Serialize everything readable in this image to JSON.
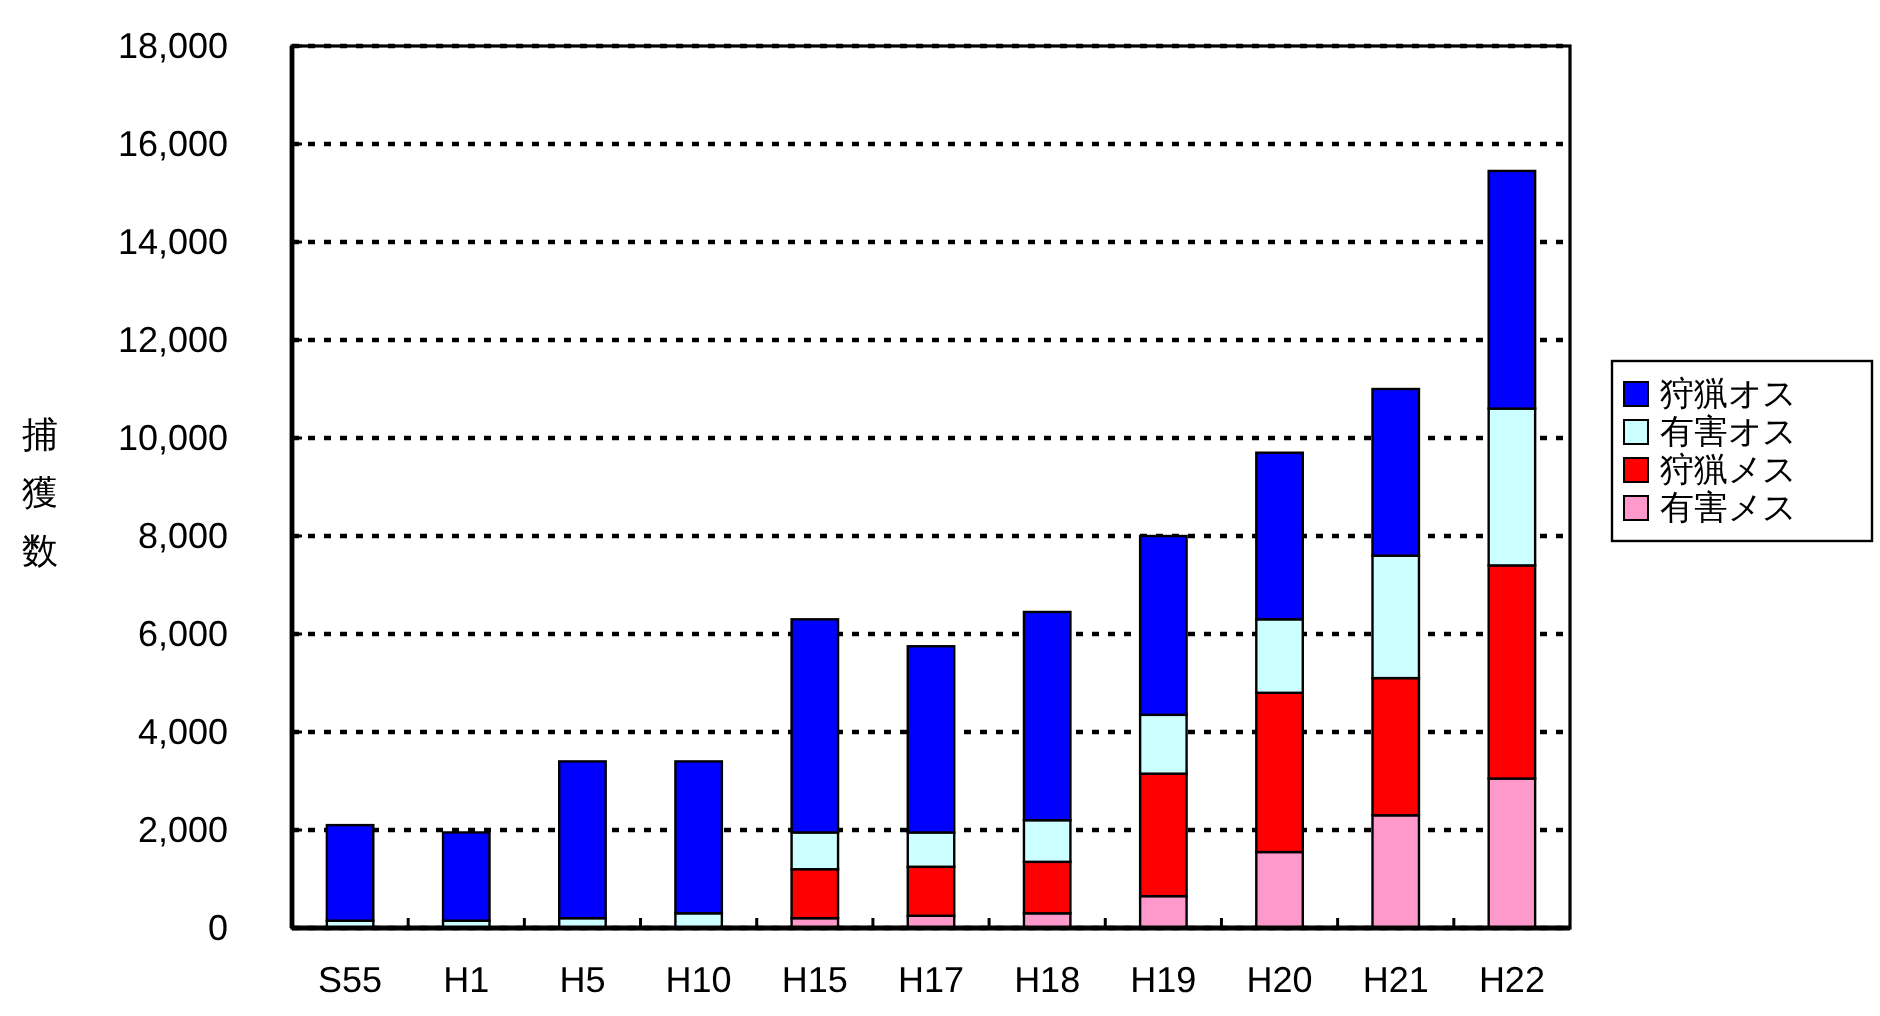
{
  "chart_data": {
    "type": "bar",
    "stacked": true,
    "ylabel": "捕獲数",
    "categories": [
      "S55",
      "H1",
      "H5",
      "H10",
      "H15",
      "H17",
      "H18",
      "H19",
      "H20",
      "H21",
      "H22"
    ],
    "series": [
      {
        "name": "有害メス",
        "color": "#ff99cc",
        "values": [
          null,
          null,
          null,
          null,
          200,
          250,
          300,
          650,
          1550,
          2300,
          3050
        ]
      },
      {
        "name": "狩猟メス",
        "color": "#ff0000",
        "values": [
          null,
          null,
          null,
          null,
          1000,
          1000,
          1050,
          2500,
          3250,
          2800,
          4350
        ]
      },
      {
        "name": "有害オス",
        "color": "#ccffff",
        "values": [
          150,
          150,
          200,
          300,
          750,
          700,
          850,
          1200,
          1500,
          2500,
          3200
        ]
      },
      {
        "name": "狩猟オス",
        "color": "#0000ff",
        "values": [
          1950,
          1800,
          3200,
          3100,
          4350,
          3800,
          4250,
          3650,
          3400,
          3400,
          4850
        ]
      }
    ],
    "ylim": [
      0,
      18000
    ],
    "yticks": [
      0,
      {
        "value": 2000,
        "label": "2,000"
      },
      {
        "value": 4000,
        "label": "4,000"
      },
      {
        "value": 6000,
        "label": "6,000"
      },
      {
        "value": 8000,
        "label": "8,000"
      },
      {
        "value": 10000,
        "label": "10,000"
      },
      {
        "value": 12000,
        "label": "12,000"
      },
      {
        "value": 14000,
        "label": "14,000"
      },
      {
        "value": 16000,
        "label": "16,000"
      },
      {
        "value": 18000,
        "label": "18,000"
      }
    ],
    "grid": "y",
    "legend": "right"
  }
}
